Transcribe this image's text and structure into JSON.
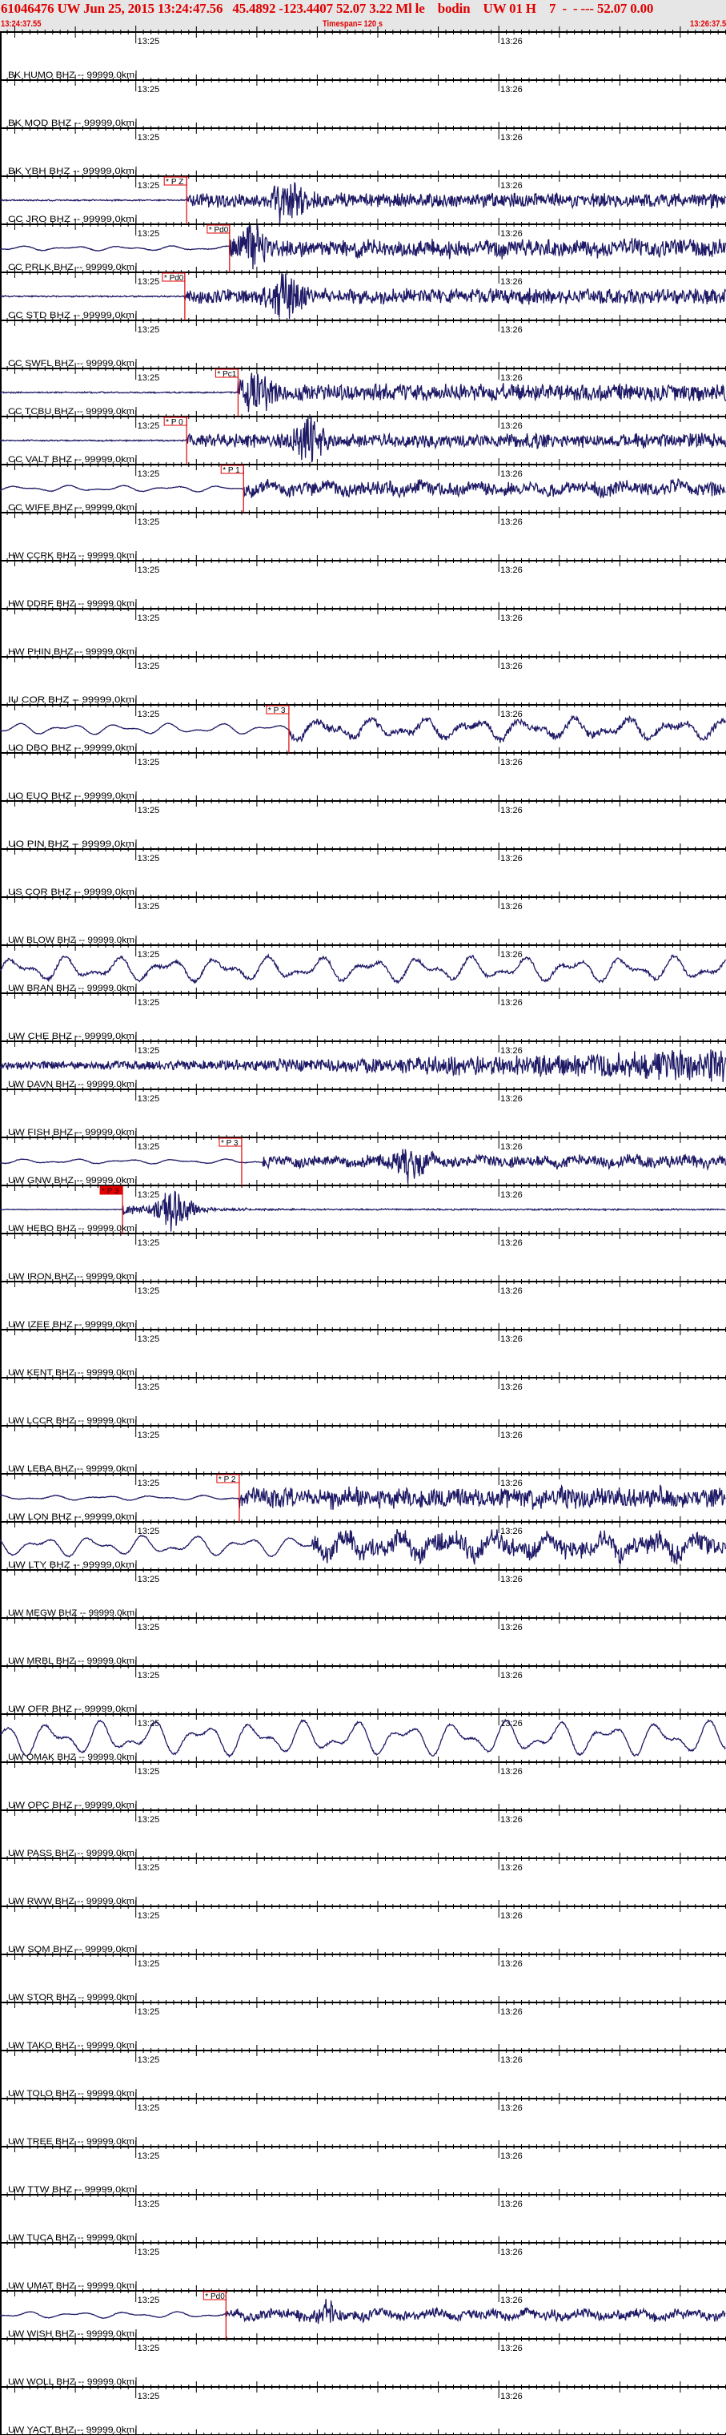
{
  "header": {
    "title": "61046476 UW Jun 25, 2015 13:24:47.56   45.4892 -123.4407 52.07 3.22 Ml le    bodin    UW 01 H    7  -  - --- 52.07 0.00",
    "start_time": "13:24:37.55",
    "timespan": "Timespan= 120 s",
    "end_time": "13:26:37.55"
  },
  "axis": {
    "start": "13:24:37.55",
    "span_seconds": 120,
    "major_labels": [
      "13:25",
      "13:26"
    ]
  },
  "colors": {
    "trace": "#1f1a66",
    "pick": "#e00000",
    "header_text": "#e00000",
    "header_bg": "#e6e6e6"
  },
  "stations": [
    {
      "label": "BK HUMO BHZ -- 99999.0km"
    },
    {
      "label": "BK MOD BHZ -- 99999.0km"
    },
    {
      "label": "BK YBH BHZ -- 99999.0km",
      "pick": {
        "label": "* P Z",
        "time": "13:25:08.4"
      },
      "waveform": {
        "pre": 1,
        "post": 10,
        "burst_time": "13:25:25.2",
        "burst_amp": 28
      }
    },
    {
      "label": "CC JRO BHZ -- 99999.0km",
      "pick": {
        "label": "* Pd0",
        "time": "13:25:15.5"
      },
      "waveform": {
        "lp": 3,
        "pre": 0.5,
        "post": 12,
        "burst_time": "13:25:19.0",
        "burst_amp": 24
      }
    },
    {
      "label": "CC PRLK BHZ -- 99999.0km",
      "pick": {
        "label": "* Pd0",
        "time": "13:25:08.1"
      },
      "waveform": {
        "pre": 1,
        "post": 11,
        "burst_time": "13:25:24.9",
        "burst_amp": 30
      }
    },
    {
      "label": "CC STD BHZ -- 99999.0km"
    },
    {
      "label": "CC SWFL BHZ -- 99999.0km",
      "pick": {
        "label": "* Pc1",
        "time": "13:25:16.9"
      },
      "waveform": {
        "pre": 1,
        "post": 12,
        "burst_time": "13:25:20.0",
        "burst_amp": 22
      }
    },
    {
      "label": "CC TCBU BHZ -- 99999.0km",
      "pick": {
        "label": "* P 0",
        "time": "13:25:08.4"
      },
      "waveform": {
        "pre": 1,
        "post": 10,
        "burst_time": "13:25:28.5",
        "burst_amp": 25
      }
    },
    {
      "label": "CC VALT BHZ -- 99999.0km",
      "pick": {
        "label": "* P 1",
        "time": "13:25:17.8"
      },
      "waveform": {
        "lp": 4,
        "pre": 0.5,
        "post": 10
      }
    },
    {
      "label": "CC WIFE BHZ -- 99999.0km"
    },
    {
      "label": "HW CCRK BHZ -- 99999.0km"
    },
    {
      "label": "HW DDRF BHZ -- 99999.0km"
    },
    {
      "label": "HW PHIN BHZ -- 99999.0km"
    },
    {
      "label": "IU COR BHZ -- 99999.0km",
      "pick": {
        "label": "* P 3",
        "time": "13:25:25.3"
      },
      "waveform": {
        "lp": 7,
        "pre": 0.5,
        "post": 5,
        "post_lp": 13
      }
    },
    {
      "label": "UO DBO BHZ -- 99999.0km"
    },
    {
      "label": "UO EUO BHZ -- 99999.0km"
    },
    {
      "label": "UO PIN BHZ -- 99999.0km"
    },
    {
      "label": "US COR BHZ -- 99999.0km"
    },
    {
      "label": "UW BLOW BHZ -- 99999.0km",
      "waveform": {
        "lp": 16,
        "pre": 2.5
      }
    },
    {
      "label": "UW BRAN BHZ -- 99999.0km"
    },
    {
      "label": "UW CHE BHZ -- 99999.0km",
      "waveform": {
        "pre": 6,
        "grow": 3
      }
    },
    {
      "label": "UW DAVN BHZ -- 99999.0km"
    },
    {
      "label": "UW FISH BHZ -- 99999.0km",
      "pick": {
        "label": "* P 3",
        "time": "13:25:17.5"
      },
      "waveform": {
        "lp": 3,
        "pre": 0.5,
        "post": 8,
        "onset": "13:25:21.0",
        "burst_time": "13:25:45.7",
        "burst_amp": 22
      }
    },
    {
      "label": "UW GNW BHZ -- 99999.0km",
      "pick": {
        "label": "* P 3",
        "time": "13:24:57.8",
        "filled": true
      },
      "waveform": {
        "pre": 0.5,
        "post": 9,
        "decay": true,
        "burst_time": "13:25:06.4",
        "burst_amp": 28
      }
    },
    {
      "label": "UW HEBO BHZ -- 99999.0km"
    },
    {
      "label": "UW IRON BHZ -- 99999.0km"
    },
    {
      "label": "UW IZEE BHZ -- 99999.0km"
    },
    {
      "label": "UW KENT BHZ -- 99999.0km"
    },
    {
      "label": "UW LCCR BHZ -- 99999.0km"
    },
    {
      "label": "UW LEBA BHZ -- 99999.0km",
      "pick": {
        "label": "* P 2",
        "time": "13:25:17.1"
      },
      "waveform": {
        "lp": 3,
        "pre": 0.5,
        "post": 14
      }
    },
    {
      "label": "UW LON BHZ -- 99999.0km",
      "waveform": {
        "lp": 13,
        "pre": 1,
        "post": 14,
        "onset": "13:25:29.0"
      }
    },
    {
      "label": "UW LTY BHZ -- 99999.0km"
    },
    {
      "label": "UW MEGW BHZ -- 99999.0km"
    },
    {
      "label": "UW MRBL BHZ -- 99999.0km"
    },
    {
      "label": "UW OFR BHZ -- 99999.0km",
      "waveform": {
        "lp": 22,
        "pre": 1.5
      }
    },
    {
      "label": "UW OMAK BHZ -- 99999.0km"
    },
    {
      "label": "UW OPC BHZ -- 99999.0km"
    },
    {
      "label": "UW PASS BHZ -- 99999.0km"
    },
    {
      "label": "UW RWW BHZ -- 99999.0km"
    },
    {
      "label": "UW SQM BHZ -- 99999.0km"
    },
    {
      "label": "UW STOR BHZ -- 99999.0km"
    },
    {
      "label": "UW TAKO BHZ -- 99999.0km"
    },
    {
      "label": "UW TOLO BHZ -- 99999.0km"
    },
    {
      "label": "UW TREE BHZ -- 99999.0km"
    },
    {
      "label": "UW TTW BHZ -- 99999.0km"
    },
    {
      "label": "UW TUCA BHZ -- 99999.0km"
    },
    {
      "label": "UW UMAT BHZ -- 99999.0km",
      "pick": {
        "label": "* Pd0",
        "time": "13:25:14.9"
      },
      "waveform": {
        "lp": 4,
        "pre": 0.5,
        "post": 7,
        "burst_time": "13:25:31.4",
        "burst_amp": 14
      }
    },
    {
      "label": "UW WISH BHZ -- 99999.0km"
    },
    {
      "label": "UW WOLL BHZ -- 99999.0km"
    },
    {
      "label": "UW YACT BHZ -- 99999.0km"
    }
  ]
}
